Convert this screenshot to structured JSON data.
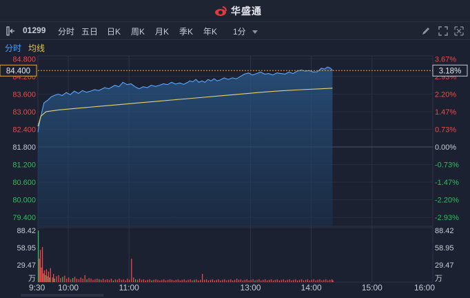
{
  "app": {
    "brand": "华盛通"
  },
  "toolbar": {
    "stock_code": "01299",
    "tabs": [
      {
        "label": "分时",
        "active": true
      },
      {
        "label": "五日",
        "active": false
      },
      {
        "label": "日K",
        "active": false
      },
      {
        "label": "周K",
        "active": false
      },
      {
        "label": "月K",
        "active": false
      },
      {
        "label": "季K",
        "active": false
      },
      {
        "label": "年K",
        "active": false
      }
    ],
    "interval": "1分",
    "icons": [
      "draw-pen-icon",
      "fullscreen-icon",
      "expand-icon"
    ]
  },
  "subbar": {
    "items": [
      {
        "label": "分时",
        "color": "#4aa3ff"
      },
      {
        "label": "均线",
        "color": "#e9c34a"
      }
    ]
  },
  "colors": {
    "up": "#f04848",
    "down": "#2ebd5c",
    "neutral": "#c7ccd6",
    "price_line": "#5aa7ff",
    "avg_line": "#e9d36a",
    "highlight": "#e9a83a"
  },
  "chart_data": {
    "type": "line",
    "prev_close": 81.8,
    "price_ticks": [
      "84.800",
      "84.200",
      "83.600",
      "83.000",
      "82.400",
      "81.800",
      "81.200",
      "80.600",
      "80.000",
      "79.400"
    ],
    "pct_ticks": [
      "3.67%",
      "2.93%",
      "2.20%",
      "1.47%",
      "0.73%",
      "0.00%",
      "-0.73%",
      "-1.47%",
      "-2.20%",
      "-2.93%"
    ],
    "ylim": [
      79.1,
      84.9
    ],
    "current_price_label": "84.400",
    "current_pct_label": "3.18%",
    "current_price": 84.4,
    "time_ticks": [
      "9:30",
      "10:00",
      "11:00",
      "13:00",
      "14:00",
      "15:00",
      "16:00"
    ],
    "x_max_minutes": 390,
    "last_minute": 291,
    "price_series": [
      [
        0,
        82.3
      ],
      [
        2,
        82.7
      ],
      [
        4,
        83.0
      ],
      [
        6,
        83.3
      ],
      [
        8,
        83.35
      ],
      [
        10,
        83.4
      ],
      [
        13,
        83.5
      ],
      [
        16,
        83.55
      ],
      [
        20,
        83.6
      ],
      [
        24,
        83.55
      ],
      [
        28,
        83.65
      ],
      [
        32,
        83.58
      ],
      [
        36,
        83.7
      ],
      [
        40,
        83.62
      ],
      [
        44,
        83.72
      ],
      [
        48,
        83.66
      ],
      [
        52,
        83.7
      ],
      [
        56,
        83.75
      ],
      [
        60,
        83.72
      ],
      [
        66,
        83.82
      ],
      [
        70,
        83.78
      ],
      [
        76,
        83.9
      ],
      [
        80,
        83.85
      ],
      [
        84,
        84.0
      ],
      [
        88,
        83.92
      ],
      [
        92,
        83.95
      ],
      [
        96,
        83.85
      ],
      [
        100,
        83.78
      ],
      [
        104,
        83.85
      ],
      [
        108,
        83.82
      ],
      [
        112,
        83.9
      ],
      [
        116,
        83.86
      ],
      [
        120,
        83.9
      ],
      [
        124,
        83.95
      ],
      [
        128,
        83.92
      ],
      [
        132,
        84.0
      ],
      [
        136,
        83.94
      ],
      [
        140,
        83.98
      ],
      [
        144,
        83.93
      ],
      [
        148,
        84.0
      ],
      [
        150,
        84.05
      ],
      [
        153,
        84.02
      ],
      [
        156,
        84.1
      ],
      [
        159,
        84.0
      ],
      [
        162,
        84.05
      ],
      [
        165,
        84.0
      ],
      [
        168,
        84.1
      ],
      [
        171,
        84.05
      ],
      [
        174,
        84.12
      ],
      [
        177,
        84.05
      ],
      [
        180,
        84.08
      ],
      [
        184,
        84.15
      ],
      [
        188,
        84.1
      ],
      [
        192,
        84.15
      ],
      [
        196,
        84.12
      ],
      [
        200,
        84.2
      ],
      [
        204,
        84.28
      ],
      [
        208,
        84.32
      ],
      [
        212,
        84.25
      ],
      [
        216,
        84.3
      ],
      [
        220,
        84.35
      ],
      [
        224,
        84.28
      ],
      [
        228,
        84.3
      ],
      [
        232,
        84.25
      ],
      [
        236,
        84.32
      ],
      [
        240,
        84.3
      ],
      [
        244,
        84.28
      ],
      [
        248,
        84.35
      ],
      [
        252,
        84.3
      ],
      [
        256,
        84.38
      ],
      [
        260,
        84.42
      ],
      [
        264,
        84.38
      ],
      [
        268,
        84.4
      ],
      [
        272,
        84.35
      ],
      [
        276,
        84.36
      ],
      [
        280,
        84.48
      ],
      [
        283,
        84.45
      ],
      [
        286,
        84.52
      ],
      [
        288,
        84.5
      ],
      [
        290,
        84.45
      ],
      [
        291,
        84.4
      ]
    ],
    "avg_series": [
      [
        0,
        82.5
      ],
      [
        3,
        82.85
      ],
      [
        8,
        83.0
      ],
      [
        20,
        83.06
      ],
      [
        40,
        83.12
      ],
      [
        60,
        83.18
      ],
      [
        80,
        83.24
      ],
      [
        100,
        83.3
      ],
      [
        120,
        83.36
      ],
      [
        140,
        83.42
      ],
      [
        160,
        83.48
      ],
      [
        180,
        83.54
      ],
      [
        200,
        83.6
      ],
      [
        220,
        83.66
      ],
      [
        240,
        83.71
      ],
      [
        260,
        83.75
      ],
      [
        280,
        83.78
      ],
      [
        291,
        83.8
      ]
    ],
    "volume_ticks": [
      "88.42",
      "58.95",
      "29.47"
    ],
    "volume_unit": "万",
    "volume_max": 88.42,
    "volume_bars": [
      [
        0,
        88.0,
        "down"
      ],
      [
        1,
        40.0,
        "up"
      ],
      [
        2,
        55.0,
        "up"
      ],
      [
        3,
        25.0,
        "up"
      ],
      [
        4,
        60.0,
        "up"
      ],
      [
        5,
        15.0,
        "up"
      ],
      [
        6,
        20.0,
        "up"
      ],
      [
        7,
        12.0,
        "down"
      ],
      [
        8,
        22.0,
        "up"
      ],
      [
        9,
        10.0,
        "up"
      ],
      [
        10,
        18.0,
        "up"
      ],
      [
        11,
        8.0,
        "down"
      ],
      [
        12,
        24.0,
        "up"
      ],
      [
        14,
        8.0,
        "up"
      ],
      [
        15,
        14.0,
        "up"
      ],
      [
        16,
        6.0,
        "down"
      ],
      [
        18,
        10.0,
        "up"
      ],
      [
        20,
        12.0,
        "up"
      ],
      [
        22,
        7.0,
        "up"
      ],
      [
        24,
        9.0,
        "down"
      ],
      [
        26,
        11.0,
        "up"
      ],
      [
        28,
        6.0,
        "up"
      ],
      [
        30,
        8.0,
        "up"
      ],
      [
        32,
        5.0,
        "up"
      ],
      [
        34,
        7.0,
        "down"
      ],
      [
        36,
        9.0,
        "up"
      ],
      [
        38,
        6.0,
        "up"
      ],
      [
        40,
        5.0,
        "up"
      ],
      [
        42,
        8.0,
        "up"
      ],
      [
        44,
        6.0,
        "up"
      ],
      [
        46,
        12.0,
        "up"
      ],
      [
        48,
        5.0,
        "down"
      ],
      [
        50,
        7.0,
        "up"
      ],
      [
        52,
        6.0,
        "up"
      ],
      [
        54,
        4.0,
        "up"
      ],
      [
        56,
        5.0,
        "up"
      ],
      [
        58,
        6.0,
        "up"
      ],
      [
        60,
        5.0,
        "down"
      ],
      [
        62,
        4.0,
        "up"
      ],
      [
        64,
        6.0,
        "up"
      ],
      [
        66,
        4.0,
        "up"
      ],
      [
        68,
        5.0,
        "up"
      ],
      [
        70,
        4.0,
        "up"
      ],
      [
        72,
        6.0,
        "up"
      ],
      [
        74,
        3.0,
        "down"
      ],
      [
        76,
        5.0,
        "up"
      ],
      [
        78,
        4.0,
        "up"
      ],
      [
        80,
        6.0,
        "up"
      ],
      [
        82,
        4.0,
        "up"
      ],
      [
        84,
        5.0,
        "up"
      ],
      [
        86,
        3.0,
        "up"
      ],
      [
        88,
        6.0,
        "up"
      ],
      [
        90,
        4.0,
        "up"
      ],
      [
        92,
        40.0,
        "up"
      ],
      [
        94,
        8.0,
        "up"
      ],
      [
        96,
        5.0,
        "down"
      ],
      [
        98,
        4.0,
        "up"
      ],
      [
        100,
        6.0,
        "up"
      ],
      [
        102,
        4.0,
        "up"
      ],
      [
        104,
        5.0,
        "up"
      ],
      [
        106,
        3.0,
        "up"
      ],
      [
        108,
        4.0,
        "up"
      ],
      [
        110,
        5.0,
        "up"
      ],
      [
        112,
        3.0,
        "down"
      ],
      [
        114,
        4.0,
        "up"
      ],
      [
        116,
        5.0,
        "up"
      ],
      [
        118,
        4.0,
        "up"
      ],
      [
        120,
        3.0,
        "up"
      ],
      [
        122,
        4.0,
        "up"
      ],
      [
        124,
        5.0,
        "up"
      ],
      [
        126,
        3.0,
        "up"
      ],
      [
        128,
        4.0,
        "up"
      ],
      [
        130,
        5.0,
        "up"
      ],
      [
        132,
        4.0,
        "up"
      ],
      [
        134,
        3.0,
        "up"
      ],
      [
        136,
        4.0,
        "up"
      ],
      [
        138,
        5.0,
        "up"
      ],
      [
        140,
        3.0,
        "up"
      ],
      [
        142,
        4.0,
        "up"
      ],
      [
        144,
        5.0,
        "up"
      ],
      [
        146,
        3.0,
        "up"
      ],
      [
        148,
        4.0,
        "up"
      ],
      [
        150,
        5.0,
        "up"
      ],
      [
        152,
        3.0,
        "up"
      ],
      [
        154,
        4.0,
        "down"
      ],
      [
        156,
        5.0,
        "up"
      ],
      [
        158,
        3.0,
        "up"
      ],
      [
        160,
        4.0,
        "up"
      ],
      [
        162,
        14.0,
        "up"
      ],
      [
        164,
        4.0,
        "up"
      ],
      [
        166,
        5.0,
        "up"
      ],
      [
        168,
        3.0,
        "up"
      ],
      [
        170,
        4.0,
        "up"
      ],
      [
        172,
        5.0,
        "up"
      ],
      [
        174,
        3.0,
        "up"
      ],
      [
        176,
        4.0,
        "up"
      ],
      [
        178,
        5.0,
        "up"
      ],
      [
        180,
        3.0,
        "up"
      ],
      [
        182,
        4.0,
        "up"
      ],
      [
        184,
        5.0,
        "up"
      ],
      [
        186,
        3.0,
        "up"
      ],
      [
        188,
        4.0,
        "up"
      ],
      [
        190,
        5.0,
        "up"
      ],
      [
        192,
        3.0,
        "up"
      ],
      [
        194,
        4.0,
        "up"
      ],
      [
        196,
        6.0,
        "up"
      ],
      [
        198,
        4.0,
        "up"
      ],
      [
        200,
        5.0,
        "up"
      ],
      [
        202,
        3.0,
        "up"
      ],
      [
        204,
        4.0,
        "up"
      ],
      [
        206,
        5.0,
        "up"
      ],
      [
        208,
        3.0,
        "up"
      ],
      [
        210,
        4.0,
        "up"
      ],
      [
        212,
        5.0,
        "up"
      ],
      [
        214,
        3.0,
        "down"
      ],
      [
        216,
        4.0,
        "up"
      ],
      [
        218,
        5.0,
        "up"
      ],
      [
        220,
        3.0,
        "up"
      ],
      [
        222,
        4.0,
        "up"
      ],
      [
        224,
        5.0,
        "up"
      ],
      [
        226,
        3.0,
        "up"
      ],
      [
        228,
        4.0,
        "up"
      ],
      [
        230,
        5.0,
        "up"
      ],
      [
        232,
        3.0,
        "up"
      ],
      [
        234,
        4.0,
        "up"
      ],
      [
        236,
        5.0,
        "up"
      ],
      [
        238,
        3.0,
        "up"
      ],
      [
        240,
        4.0,
        "up"
      ],
      [
        242,
        5.0,
        "up"
      ],
      [
        244,
        3.0,
        "up"
      ],
      [
        246,
        4.0,
        "up"
      ],
      [
        248,
        5.0,
        "up"
      ],
      [
        250,
        3.0,
        "up"
      ],
      [
        252,
        4.0,
        "up"
      ],
      [
        254,
        5.0,
        "up"
      ],
      [
        256,
        3.0,
        "up"
      ],
      [
        258,
        4.0,
        "up"
      ],
      [
        260,
        5.0,
        "up"
      ],
      [
        262,
        3.0,
        "up"
      ],
      [
        264,
        4.0,
        "up"
      ],
      [
        266,
        5.0,
        "up"
      ],
      [
        268,
        3.0,
        "up"
      ],
      [
        270,
        4.0,
        "up"
      ],
      [
        272,
        5.0,
        "up"
      ],
      [
        274,
        3.0,
        "up"
      ],
      [
        276,
        4.0,
        "up"
      ],
      [
        278,
        5.0,
        "up"
      ],
      [
        280,
        3.0,
        "up"
      ],
      [
        282,
        4.0,
        "up"
      ],
      [
        284,
        5.0,
        "up"
      ],
      [
        286,
        3.0,
        "up"
      ],
      [
        288,
        4.0,
        "up"
      ],
      [
        290,
        5.0,
        "up"
      ],
      [
        291,
        3.0,
        "up"
      ]
    ]
  }
}
